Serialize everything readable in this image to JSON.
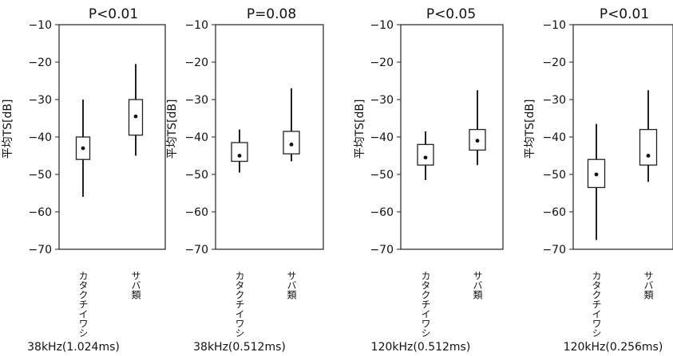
{
  "chart_data": [
    {
      "type": "box",
      "title": "P<0.01",
      "ylabel": "平均TS[dB]",
      "caption": "38kHz(1.024ms)",
      "ylim": [
        -70,
        -10
      ],
      "yticks": [
        -10,
        -20,
        -30,
        -40,
        -50,
        -60,
        -70
      ],
      "categories": [
        "カタクチイワシ",
        "サバ類"
      ],
      "boxes": [
        {
          "whisker_low": -56,
          "q1": -46,
          "mean": -43,
          "q3": -40,
          "whisker_high": -30
        },
        {
          "whisker_low": -45,
          "q1": -39.5,
          "mean": -34.5,
          "q3": -30,
          "whisker_high": -20.5
        }
      ]
    },
    {
      "type": "box",
      "title": "P=0.08",
      "ylabel": "平均TS[dB]",
      "caption": "38kHz(0.512ms)",
      "ylim": [
        -70,
        -10
      ],
      "yticks": [
        -10,
        -20,
        -30,
        -40,
        -50,
        -60,
        -70
      ],
      "categories": [
        "カタクチイワシ",
        "サバ類"
      ],
      "boxes": [
        {
          "whisker_low": -49.5,
          "q1": -46.5,
          "mean": -45,
          "q3": -41.5,
          "whisker_high": -38
        },
        {
          "whisker_low": -46.5,
          "q1": -44.5,
          "mean": -42,
          "q3": -38.5,
          "whisker_high": -27
        }
      ]
    },
    {
      "type": "box",
      "title": "P<0.05",
      "ylabel": "平均TS[dB]",
      "caption": "120kHz(0.512ms)",
      "ylim": [
        -70,
        -10
      ],
      "yticks": [
        -10,
        -20,
        -30,
        -40,
        -50,
        -60,
        -70
      ],
      "categories": [
        "カタクチイワシ",
        "サバ類"
      ],
      "boxes": [
        {
          "whisker_low": -51.5,
          "q1": -47.5,
          "mean": -45.5,
          "q3": -42,
          "whisker_high": -38.5
        },
        {
          "whisker_low": -47.5,
          "q1": -43.5,
          "mean": -41,
          "q3": -38,
          "whisker_high": -27.5
        }
      ]
    },
    {
      "type": "box",
      "title": "P<0.01",
      "ylabel": "平均TS[dB]",
      "caption": "120kHz(0.256ms)",
      "ylim": [
        -70,
        -10
      ],
      "yticks": [
        -10,
        -20,
        -30,
        -40,
        -50,
        -60,
        -70
      ],
      "categories": [
        "カタクチイワシ",
        "サバ類"
      ],
      "boxes": [
        {
          "whisker_low": -67.5,
          "q1": -53.5,
          "mean": -50,
          "q3": -46,
          "whisker_high": -36.5
        },
        {
          "whisker_low": -52,
          "q1": -47.5,
          "mean": -45,
          "q3": -38,
          "whisker_high": -27.5
        }
      ]
    }
  ]
}
